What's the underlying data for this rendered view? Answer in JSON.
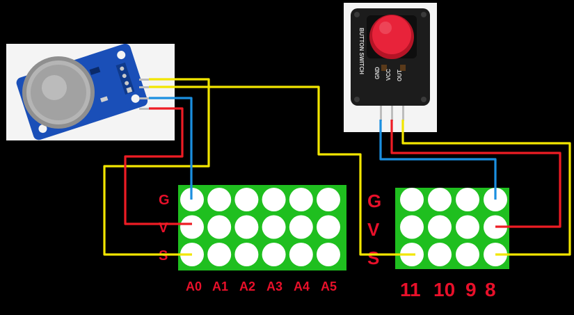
{
  "colors": {
    "background": "#000000",
    "header_green": "#1fbf1f",
    "hole_white": "#ffffff",
    "label_red": "#e8102a",
    "wire_yellow": "#f2e600",
    "wire_red": "#ee1c24",
    "wire_blue": "#1b8fe0",
    "sensor_board": "#1a4fb8",
    "button_cap": "#e8233a"
  },
  "left_header": {
    "row_labels": [
      "G",
      "V",
      "S"
    ],
    "column_labels": [
      "A0",
      "A1",
      "A2",
      "A3",
      "A4",
      "A5"
    ]
  },
  "right_header": {
    "row_labels": [
      "G",
      "V",
      "S"
    ],
    "column_labels": [
      "11",
      "10",
      "9",
      "8"
    ]
  },
  "button_module": {
    "board_text": "BUTTON SWITCH",
    "pin_labels": [
      "GND",
      "VCC",
      "OUT"
    ]
  },
  "gas_sensor": {
    "icon": "gas-sensor-module"
  }
}
